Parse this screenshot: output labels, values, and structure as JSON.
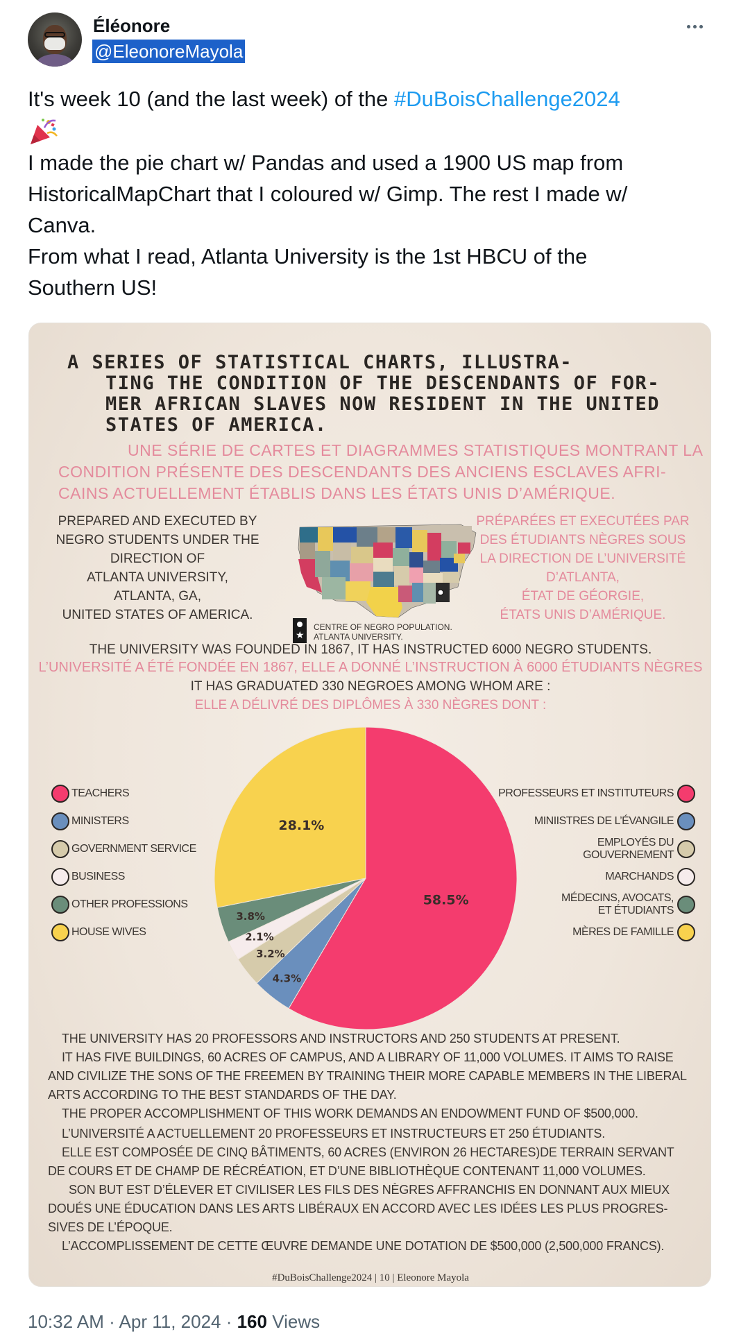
{
  "author": {
    "name": "Éléonore",
    "handle": "@EleonoreMayola"
  },
  "tweet": {
    "line1_pre": "It's week 10 (and the last week) of the ",
    "hashtag": "#DuBoisChallenge2024",
    "emoji": "party-popper-icon",
    "line3": "I made the pie chart w/ Pandas and used a 1900 US map from",
    "line4": "HistoricalMapChart  that I coloured w/ Gimp. The rest I made w/",
    "line5": "Canva.",
    "line6": "From what I read, Atlanta University is the 1st HBCU of the",
    "line7": "Southern US!"
  },
  "poster": {
    "title_lines": [
      "A SERIES OF STATISTICAL CHARTS, ILLUSTRA-",
      "TING THE CONDITION OF THE DESCENDANTS OF FOR-",
      "MER AFRICAN SLAVES NOW RESIDENT IN THE UNITED",
      "STATES OF AMERICA."
    ],
    "fr_title_lines": [
      "UNE SÉRIE DE CARTES ET DIAGRAMMES STATISTIQUES MONTRANT LA",
      "CONDITION PRÉSENTE DES DESCENDANTS DES ANCIENS ESCLAVES AFRI-",
      "CAINS ACTUELLEMENT ÉTABLIS DANS LES ÉTATS UNIS D’AMÉRIQUE."
    ],
    "left_block": [
      "PREPARED AND EXECUTED BY",
      "NEGRO STUDENTS UNDER THE",
      "DIRECTION OF",
      "ATLANTA UNIVERSITY,",
      "ATLANTA, GA,",
      "UNITED STATES OF AMERICA."
    ],
    "right_block": [
      "PRÉPARÉES ET EXECUTÉES PAR",
      "DES ÉTUDIANTS NÈGRES SOUS",
      "LA DIRECTION DE L’UNIVERSITÉ",
      "D’ATLANTA,",
      "ÉTAT DE GÉORGIE,",
      "ÉTATS UNIS D’AMÉRIQUE."
    ],
    "map_legend_line1": "CENTRE OF NEGRO POPULATION.",
    "map_legend_line2": "ATLANTA UNIVERSITY.",
    "center_lines": [
      "THE UNIVERSITY WAS FOUNDED IN 1867, IT HAS INSTRUCTED 6000 NEGRO STUDENTS.",
      "L’UNIVERSITÉ A ÉTÉ FONDÉE EN 1867, ELLE A DONNÉ L’INSTRUCTION À 6000 ÉTUDIANTS NÈGRES",
      "IT HAS GRADUATED 330 NEGROES AMONG WHOM ARE :",
      "ELLE A DÉLIVRÉ DES DIPLÔMES À 330 NÈGRES DONT :"
    ],
    "body_en": [
      "THE UNIVERSITY HAS 20 PROFESSORS AND INSTRUCTORS AND 250 STUDENTS AT PRESENT.",
      "IT HAS FIVE BUILDINGS, 60 ACRES OF CAMPUS, AND A LIBRARY OF 11,000 VOLUMES. IT AIMS TO RAISE",
      "AND CIVILIZE THE SONS OF THE FREEMEN BY TRAINING THEIR MORE CAPABLE MEMBERS IN THE LIBERAL",
      "ARTS ACCORDING TO THE BEST STANDARDS OF THE DAY.",
      "THE PROPER ACCOMPLISHMENT OF THIS WORK DEMANDS AN ENDOWMENT FUND OF $500,000."
    ],
    "body_fr": [
      "L’UNIVERSITÉ A ACTUELLEMENT 20 PROFESSEURS ET INSTRUCTEURS ET 250 ÉTUDIANTS.",
      "ELLE EST COMPOSÉE DE CINQ BÂTIMENTS, 60 ACRES (ENVIRON 26 HECTARES)DE TERRAIN SERVANT",
      "DE COURS ET DE CHAMP DE RÉCRÉATION, ET D’UNE BIBLIOTHÈQUE CONTENANT 11,000 VOLUMES.",
      "SON BUT EST D’ÉLEVER ET CIVILISER LES FILS DES NÈGRES AFFRANCHIS EN DONNANT AUX MIEUX",
      "DOUÉS UNE ÉDUCATION DANS LES ARTS LIBÉRAUX EN ACCORD AVEC LES IDÉES LES PLUS PROGRES-",
      "SIVES DE L’ÉPOQUE.",
      "L’ACCOMPLISSEMENT DE CETTE ŒUVRE DEMANDE UNE DOTATION DE $500,000 (2,500,000 FRANCS)."
    ],
    "footer_credit": "#DuBoisChallenge2024 | 10 | Eleonore Mayola",
    "colors": {
      "pink": "#f43c6e",
      "blue": "#6a8fbd",
      "tan": "#d6cbab",
      "white": "#f6ecec",
      "green": "#6a8d7a",
      "yellow": "#f8d24e"
    }
  },
  "chart_data": {
    "type": "pie",
    "slices": [
      {
        "label": "TEACHERS",
        "label_fr": "PROFESSEURS ET INSTITUTEURS",
        "value": 58.5,
        "display": "58.5%",
        "color": "#f43c6e"
      },
      {
        "label": "MINISTERS",
        "label_fr": "MINIISTRES DE L’ÉVANGILE",
        "value": 4.3,
        "display": "4.3%",
        "color": "#6a8fbd"
      },
      {
        "label": "GOVERNMENT SERVICE",
        "label_fr": "EMPLOYÉS DU GOUVERNEMENT",
        "value": 3.2,
        "display": "3.2%",
        "color": "#d6cbab"
      },
      {
        "label": "BUSINESS",
        "label_fr": "MARCHANDS",
        "value": 2.1,
        "display": "2.1%",
        "color": "#f6ecec"
      },
      {
        "label": "OTHER PROFESSIONS",
        "label_fr": "MÉDECINS, AVOCATS, ET ÉTUDIANTS",
        "value": 3.8,
        "display": "3.8%",
        "color": "#6a8d7a"
      },
      {
        "label": "HOUSE WIVES",
        "label_fr": "MÈRES DE FAMILLE",
        "value": 28.1,
        "display": "28.1%",
        "color": "#f8d24e"
      }
    ]
  },
  "footer": {
    "time": "10:32 AM · Apr 11, 2024 · ",
    "views_count": "160",
    "views_label": " Views"
  }
}
